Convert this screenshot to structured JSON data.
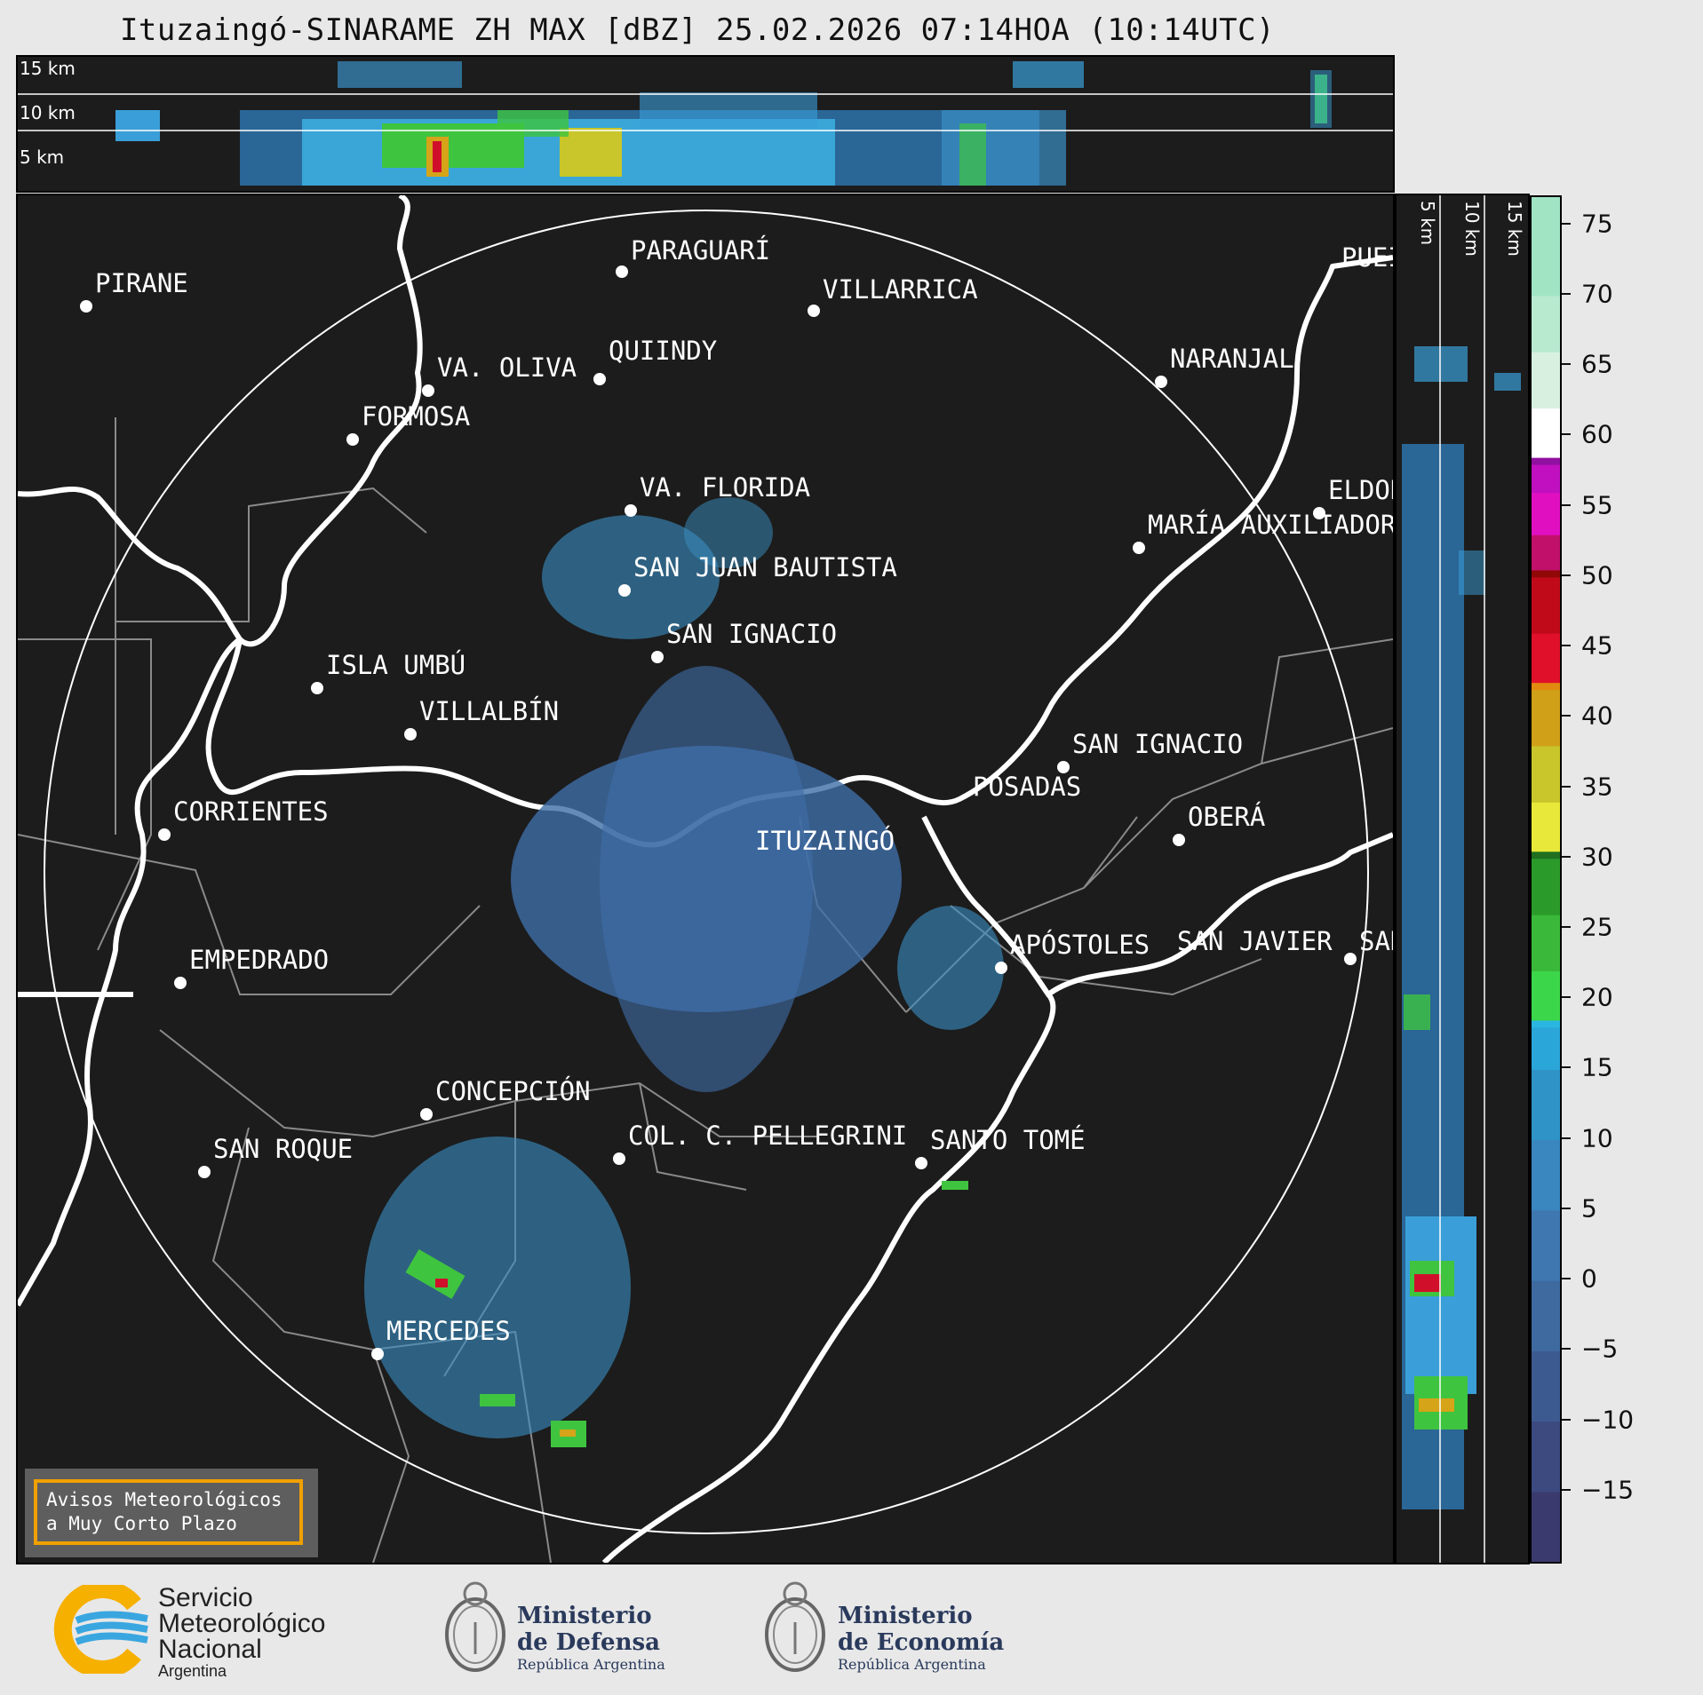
{
  "title": "Ituzaingó-SINARAME ZH MAX [dBZ] 25.02.2026 07:14HOA (10:14UTC)",
  "top_panel": {
    "altitudes": [
      "15 km",
      "10 km",
      "5 km"
    ]
  },
  "right_panel": {
    "altitudes": [
      "5 km",
      "10 km",
      "15 km"
    ]
  },
  "cities": [
    {
      "name": "PARAGUARÍ"
    },
    {
      "name": "PIRANE"
    },
    {
      "name": "VILLARRICA"
    },
    {
      "name": "QUIINDY"
    },
    {
      "name": "VA. OLIVA"
    },
    {
      "name": "NARANJAL"
    },
    {
      "name": "FORMOSA"
    },
    {
      "name": "VA. FLORIDA"
    },
    {
      "name": "ELDOR"
    },
    {
      "name": "MARÍA AUXILIADOR"
    },
    {
      "name": "SAN JUAN BAUTISTA"
    },
    {
      "name": "SAN IGNACIO"
    },
    {
      "name": "ISLA UMBÚ"
    },
    {
      "name": "VILLALBÍN"
    },
    {
      "name": "SAN IGNACIO"
    },
    {
      "name": "POSADAS"
    },
    {
      "name": "CORRIENTES"
    },
    {
      "name": "ITUZAINGÓ"
    },
    {
      "name": "OBERÁ"
    },
    {
      "name": "APÓSTOLES"
    },
    {
      "name": "SAN JAVIER"
    },
    {
      "name": "SAN"
    },
    {
      "name": "EMPEDRADO"
    },
    {
      "name": "CONCEPCIÓN"
    },
    {
      "name": "COL. C. PELLEGRINI"
    },
    {
      "name": "SANTO TOMÉ"
    },
    {
      "name": "SAN ROQUE"
    },
    {
      "name": "MERCEDES"
    },
    {
      "name": "PUEI"
    }
  ],
  "colorbar": {
    "unit": "dBZ",
    "ticks": [
      "75",
      "70",
      "65",
      "60",
      "55",
      "50",
      "45",
      "40",
      "35",
      "30",
      "25",
      "20",
      "15",
      "10",
      "5",
      "0",
      "−5",
      "−10",
      "−15"
    ],
    "range": [
      -20,
      77
    ]
  },
  "warning_box": {
    "line1": "Avisos Meteorológicos",
    "line2": "a Muy Corto Plazo"
  },
  "footer": {
    "smn": {
      "line1": "Servicio",
      "line2": "Meteorológico",
      "line3": "Nacional",
      "line4": "Argentina"
    },
    "defensa": {
      "line1": "Ministerio",
      "line2": "de Defensa",
      "line3": "República Argentina"
    },
    "economia": {
      "line1": "Ministerio",
      "line2": "de Economía",
      "line3": "República Argentina"
    }
  },
  "colors": {
    "background": "#1c1c1c",
    "rivers": "#ffffff",
    "borders": "#888888",
    "warning_border": "#f0a000"
  }
}
